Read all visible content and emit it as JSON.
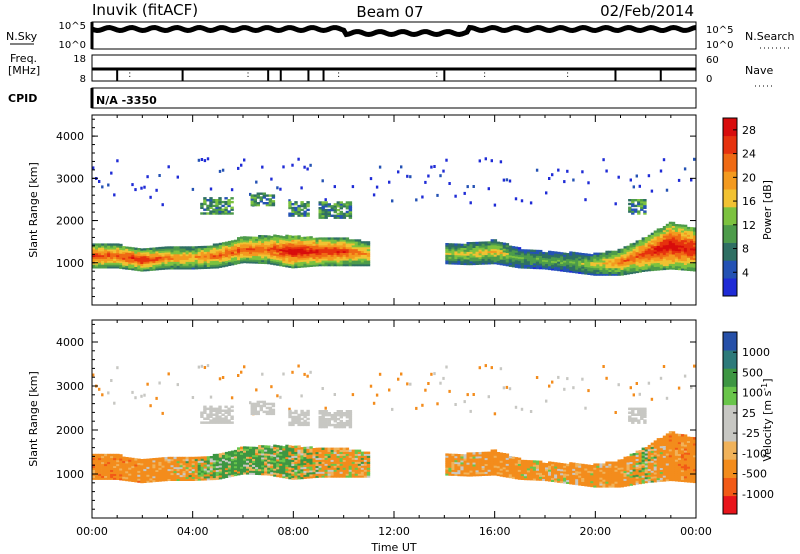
{
  "header": {
    "site": "Inuvik (fitACF)",
    "beam": "Beam 07",
    "date": "02/Feb/2014"
  },
  "top_panels": {
    "nsky_label": "N.Sky",
    "nsky_ticks": [
      "10^5",
      "10^0"
    ],
    "nsearch_label": "N.Search",
    "nsearch_ticks": [
      "10^5",
      "10^0"
    ],
    "freq_label_1": "Freq.",
    "freq_label_2": "[MHz]",
    "freq_ticks": [
      "18",
      "8"
    ],
    "nave_label": "Nave",
    "nave_ticks": [
      "60",
      "0"
    ],
    "cpid_label": "CPID",
    "cpid_value": "N/A -3350"
  },
  "colors": {
    "power": [
      "#1f2bd6",
      "#2452b4",
      "#2f6f63",
      "#4d9b4a",
      "#7cc23f",
      "#f1c232",
      "#f39a1f",
      "#ef6a14",
      "#e6320e",
      "#d80c0c"
    ],
    "velocity": [
      "#e8151b",
      "#f25a16",
      "#f38c1c",
      "#f0b25a",
      "#c7c7c3",
      "#c7c7c3",
      "#69c54a",
      "#3d9642",
      "#2d7a7a",
      "#2650a8"
    ]
  },
  "chart_data": [
    {
      "type": "heatmap",
      "title": "",
      "xlabel": "",
      "ylabel": "Slant Range [km]",
      "xlim": [
        "00:00",
        "24:00"
      ],
      "ylim": [
        0,
        4500
      ],
      "x_ticks": [
        "00:00",
        "04:00",
        "08:00",
        "12:00",
        "16:00",
        "20:00",
        "00:00"
      ],
      "y_ticks": [
        1000,
        2000,
        3000,
        4000
      ],
      "colorbar": {
        "label": "Power [dB]",
        "range": [
          0,
          30
        ],
        "ticks": [
          4,
          8,
          12,
          16,
          20,
          24,
          28
        ]
      },
      "echo_band": {
        "hours": [
          0,
          1,
          2,
          3,
          4,
          5,
          6,
          7,
          8,
          9,
          10,
          11,
          12,
          13,
          14,
          15,
          16,
          17,
          18,
          19,
          20,
          21,
          22,
          23,
          24
        ],
        "center_km": [
          1150,
          1150,
          1050,
          1100,
          1100,
          1150,
          1300,
          1300,
          1250,
          1250,
          1250,
          1200,
          null,
          null,
          1200,
          1200,
          1250,
          1100,
          1050,
          1000,
          950,
          1000,
          1200,
          1400,
          1300
        ],
        "width_km": [
          550,
          550,
          500,
          500,
          500,
          550,
          600,
          650,
          750,
          650,
          650,
          550,
          null,
          null,
          450,
          500,
          550,
          450,
          400,
          450,
          500,
          600,
          800,
          1100,
          1000
        ],
        "peak_power_db": [
          26,
          24,
          28,
          22,
          20,
          24,
          24,
          24,
          30,
          28,
          26,
          20,
          null,
          null,
          16,
          16,
          18,
          12,
          12,
          12,
          16,
          22,
          26,
          30,
          28
        ]
      },
      "upper_patches": [
        {
          "start_hour": 4.3,
          "end_hour": 5.6,
          "range_km": [
            2150,
            2550
          ]
        },
        {
          "start_hour": 6.3,
          "end_hour": 7.2,
          "range_km": [
            2350,
            2650
          ]
        },
        {
          "start_hour": 7.8,
          "end_hour": 8.6,
          "range_km": [
            2100,
            2450
          ]
        },
        {
          "start_hour": 9.0,
          "end_hour": 10.3,
          "range_km": [
            2050,
            2450
          ]
        },
        {
          "start_hour": 21.3,
          "end_hour": 22.0,
          "range_km": [
            2150,
            2500
          ]
        }
      ]
    },
    {
      "type": "heatmap",
      "title": "",
      "xlabel": "Time UT",
      "ylabel": "Slant Range [km]",
      "xlim": [
        "00:00",
        "24:00"
      ],
      "ylim": [
        0,
        4500
      ],
      "x_ticks": [
        "00:00",
        "04:00",
        "08:00",
        "12:00",
        "16:00",
        "20:00",
        "00:00"
      ],
      "y_ticks": [
        1000,
        2000,
        3000,
        4000
      ],
      "colorbar": {
        "label": "Velocity [m s^-1]",
        "ticks": [
          "1000",
          "500",
          "100",
          "25",
          "-25",
          "-100",
          "-500",
          "-1000"
        ]
      },
      "dominant_velocity_m_s": [
        -300,
        -300,
        -250,
        -200,
        -100,
        150,
        120,
        100,
        50,
        -80,
        -150,
        -120,
        null,
        null,
        -150,
        -200,
        -250,
        -200,
        -150,
        -200,
        -200,
        -250,
        -10,
        -300,
        -300
      ]
    }
  ]
}
